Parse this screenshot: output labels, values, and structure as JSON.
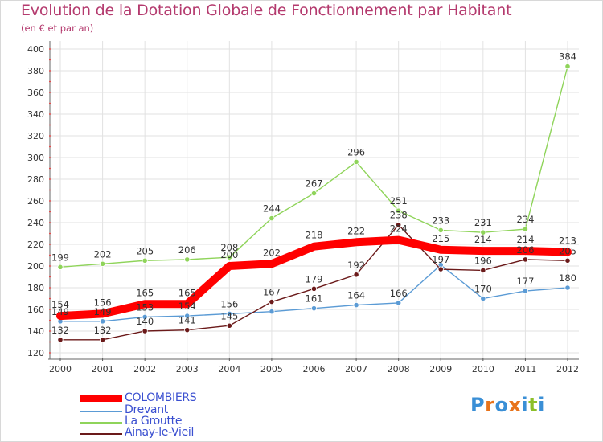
{
  "title": "Evolution de la Dotation Globale de Fonctionnement par Habitant",
  "subtitle": "(en € et par an)",
  "logo": {
    "text": "Proxiti",
    "letters": [
      "P",
      "r",
      "o",
      "x",
      "i",
      "t",
      "i"
    ],
    "colors": [
      "#3a8fd6",
      "#e8731a",
      "#3a8fd6",
      "#e8731a",
      "#3a8fd6",
      "#8cbf2a",
      "#3a8fd6"
    ]
  },
  "chart_data": {
    "type": "line",
    "title": "Evolution de la Dotation Globale de Fonctionnement par Habitant",
    "subtitle": "(en € et par an)",
    "xlabel": "",
    "ylabel": "",
    "x": [
      "2000",
      "2001",
      "2002",
      "2003",
      "2004",
      "2005",
      "2006",
      "2007",
      "2008",
      "2009",
      "2010",
      "2011",
      "2012"
    ],
    "ylim": [
      120,
      400
    ],
    "yticks": [
      "120",
      "140",
      "160",
      "180",
      "200",
      "220",
      "240",
      "260",
      "280",
      "300",
      "320",
      "340",
      "360",
      "380",
      "400"
    ],
    "grid": true,
    "legend_position": "bottom-left",
    "series": [
      {
        "name": "COLOMBIERS",
        "color": "#ff0000",
        "emphasis": true,
        "values": [
          154,
          156,
          165,
          165,
          200,
          202,
          218,
          222,
          224,
          215,
          214,
          214,
          213
        ]
      },
      {
        "name": "Drevant",
        "color": "#5b9bd5",
        "emphasis": false,
        "values": [
          149,
          149,
          153,
          154,
          156,
          158,
          161,
          164,
          166,
          201,
          170,
          177,
          180
        ],
        "labels": [
          "149",
          "149",
          "153",
          "154",
          "156",
          "",
          "161",
          "164",
          "166",
          "",
          "170",
          "177",
          "180"
        ]
      },
      {
        "name": "La Groutte",
        "color": "#8fd45a",
        "emphasis": false,
        "values": [
          199,
          202,
          205,
          206,
          208,
          244,
          267,
          296,
          251,
          233,
          231,
          234,
          384
        ]
      },
      {
        "name": "Ainay-le-Vieil",
        "color": "#6b1a1a",
        "emphasis": false,
        "values": [
          132,
          132,
          140,
          141,
          145,
          167,
          179,
          192,
          238,
          197,
          196,
          206,
          205
        ],
        "labels": [
          "132",
          "132",
          "140",
          "141",
          "145",
          "167",
          "179",
          "192",
          "238",
          "197",
          "196",
          "206",
          "205"
        ]
      }
    ]
  }
}
